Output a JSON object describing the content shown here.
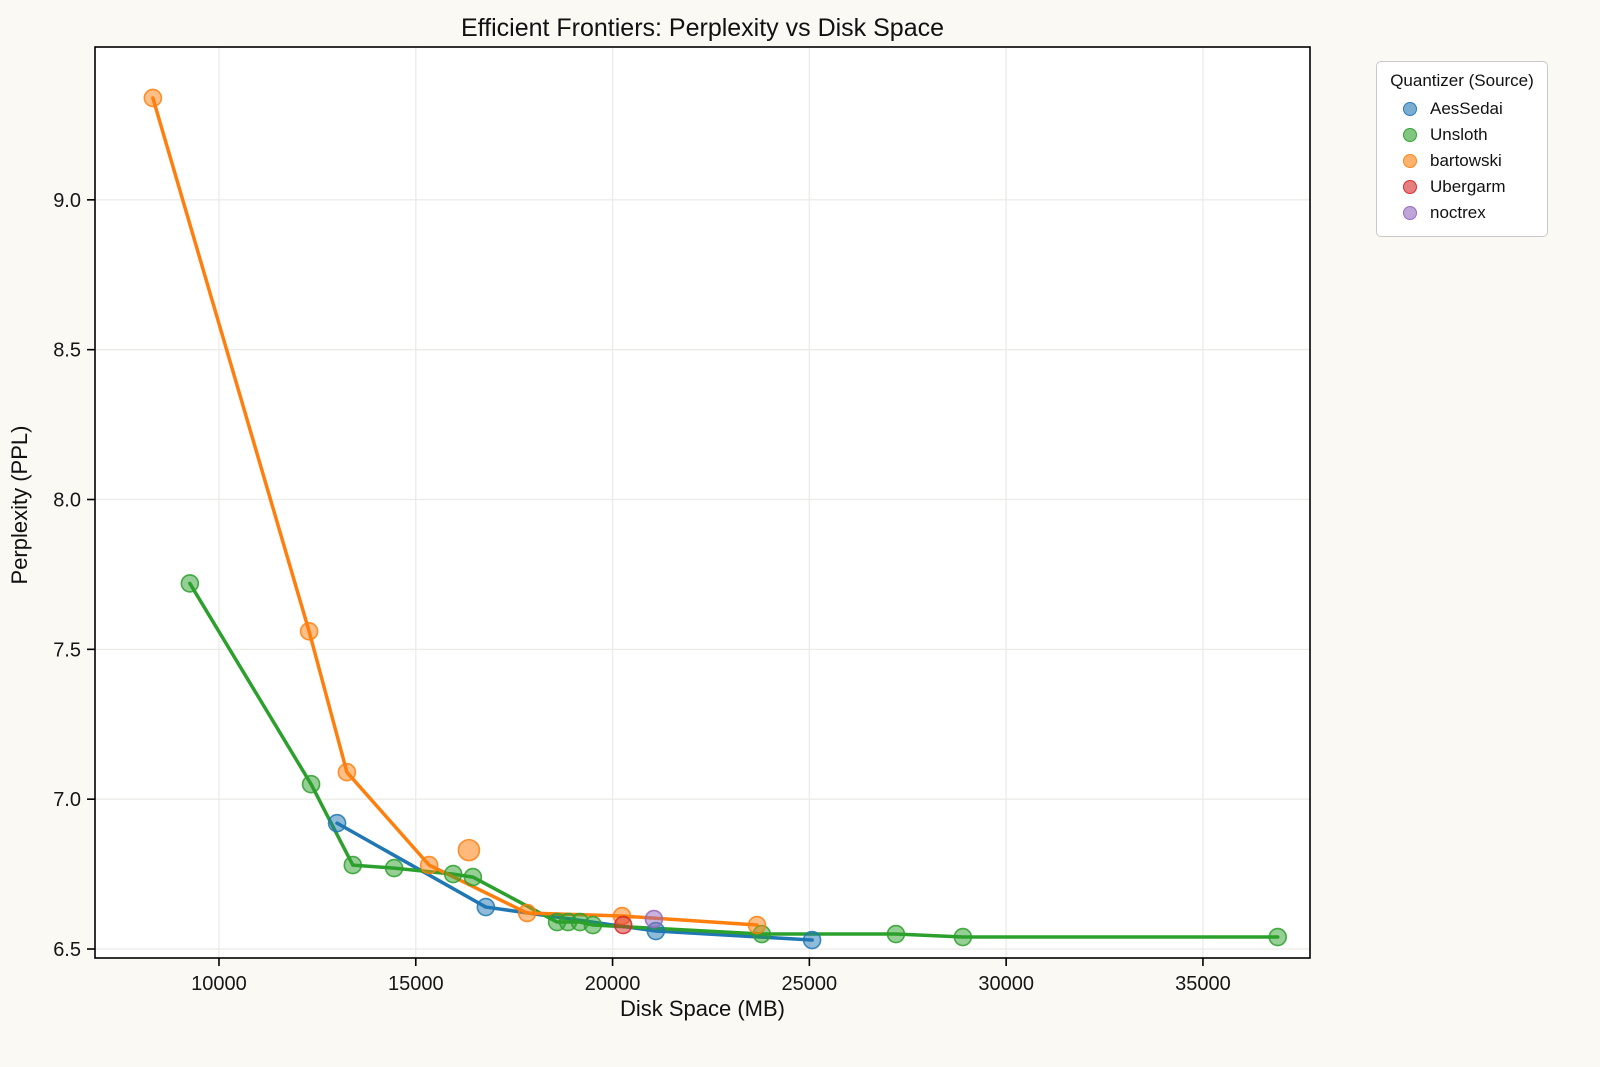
{
  "chart_data": {
    "type": "scatter",
    "title": "Efficient Frontiers: Perplexity vs Disk Space",
    "xlabel": "Disk Space (MB)",
    "ylabel": "Perplexity (PPL)",
    "xlim": [
      6850,
      37720
    ],
    "ylim": [
      6.47,
      9.51
    ],
    "xticks": [
      10000,
      15000,
      20000,
      25000,
      30000,
      35000
    ],
    "yticks": [
      6.5,
      7.0,
      7.5,
      8.0,
      8.5,
      9.0
    ],
    "grid": true,
    "legend": {
      "title": "Quantizer (Source)",
      "position": "outside-top-right"
    },
    "series": [
      {
        "name": "AesSedai",
        "color": "#1f77b4",
        "line": true,
        "points": [
          [
            13000,
            6.92
          ],
          [
            16780,
            6.64
          ],
          [
            21100,
            6.56
          ],
          [
            25070,
            6.53
          ]
        ]
      },
      {
        "name": "Unsloth",
        "color": "#2ca02c",
        "line": true,
        "points": [
          [
            9260,
            7.72
          ],
          [
            12340,
            7.05
          ],
          [
            13400,
            6.78
          ],
          [
            14450,
            6.77
          ],
          [
            15950,
            6.75
          ],
          [
            16450,
            6.74
          ],
          [
            18590,
            6.59
          ],
          [
            18870,
            6.59
          ],
          [
            19170,
            6.59
          ],
          [
            19500,
            6.58
          ],
          [
            23790,
            6.55
          ],
          [
            27200,
            6.55
          ],
          [
            28900,
            6.54
          ],
          [
            36900,
            6.54
          ]
        ]
      },
      {
        "name": "bartowski",
        "color": "#ff7f0e",
        "line": true,
        "points": [
          [
            8320,
            9.34
          ],
          [
            12290,
            7.56
          ],
          [
            13250,
            7.09
          ],
          [
            15340,
            6.78
          ],
          [
            17830,
            6.62
          ],
          [
            20240,
            6.61
          ],
          [
            23670,
            6.58
          ]
        ],
        "off_line_points": [
          [
            16350,
            6.83
          ]
        ]
      },
      {
        "name": "Ubergarm",
        "color": "#d62728",
        "line": false,
        "points": [
          [
            20270,
            6.58
          ]
        ]
      },
      {
        "name": "noctrex",
        "color": "#9467bd",
        "line": false,
        "points": [
          [
            21050,
            6.6
          ]
        ]
      }
    ]
  }
}
